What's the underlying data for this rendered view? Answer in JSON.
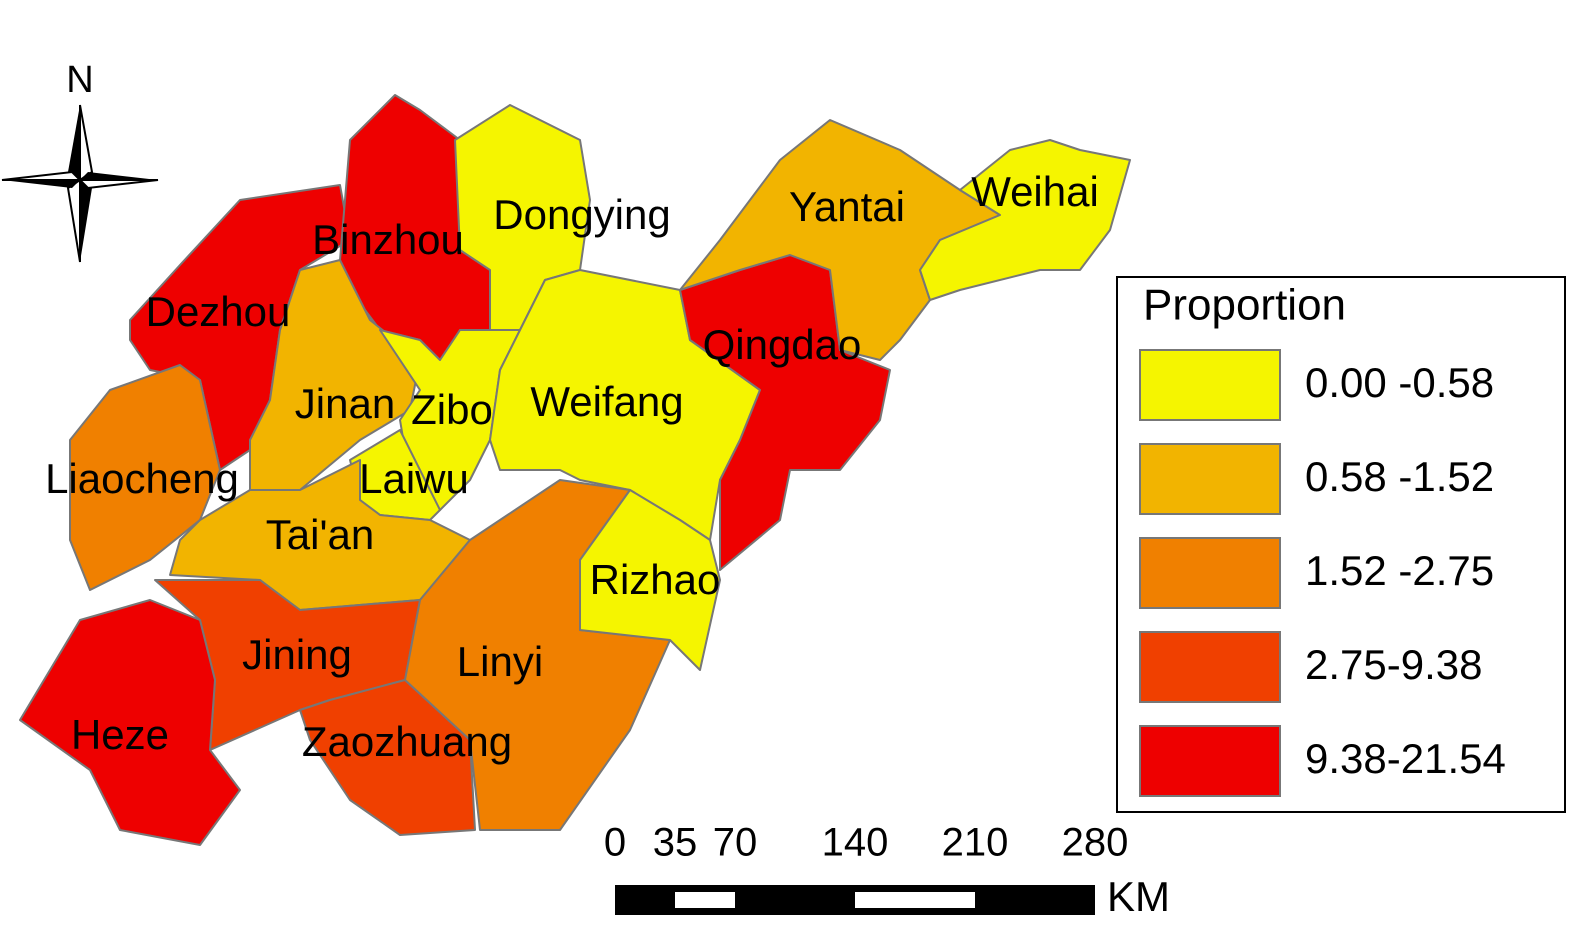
{
  "north_arrow": {
    "label": "N"
  },
  "regions": [
    {
      "name": "Dezhou",
      "color": "#ee0000"
    },
    {
      "name": "Binzhou",
      "color": "#ee0000"
    },
    {
      "name": "Dongying",
      "color": "#f5f500"
    },
    {
      "name": "Jinan",
      "color": "#f2b400"
    },
    {
      "name": "Zibo",
      "color": "#f5f500"
    },
    {
      "name": "Laiwu",
      "color": "#f5f500"
    },
    {
      "name": "Weifang",
      "color": "#f5f500"
    },
    {
      "name": "Liaocheng",
      "color": "#f08000"
    },
    {
      "name": "Tai'an",
      "color": "#f2b400"
    },
    {
      "name": "Jining",
      "color": "#f04000"
    },
    {
      "name": "Heze",
      "color": "#ee0000"
    },
    {
      "name": "Zaozhuang",
      "color": "#f04000"
    },
    {
      "name": "Linyi",
      "color": "#f08000"
    },
    {
      "name": "Rizhao",
      "color": "#f5f500"
    },
    {
      "name": "Qingdao",
      "color": "#ee0000"
    },
    {
      "name": "Yantai",
      "color": "#f2b400"
    },
    {
      "name": "Weihai",
      "color": "#f5f500"
    }
  ],
  "legend": {
    "title": "Proportion",
    "items": [
      {
        "label": "0.00 -0.58",
        "color": "#f5f500"
      },
      {
        "label": "0.58 -1.52",
        "color": "#f2b400"
      },
      {
        "label": "1.52 -2.75",
        "color": "#f08000"
      },
      {
        "label": "2.75-9.38",
        "color": "#f04000"
      },
      {
        "label": "9.38-21.54",
        "color": "#ee0000"
      }
    ]
  },
  "scale_bar": {
    "ticks": [
      0,
      35,
      70,
      140,
      210,
      280
    ],
    "unit": "KM"
  }
}
